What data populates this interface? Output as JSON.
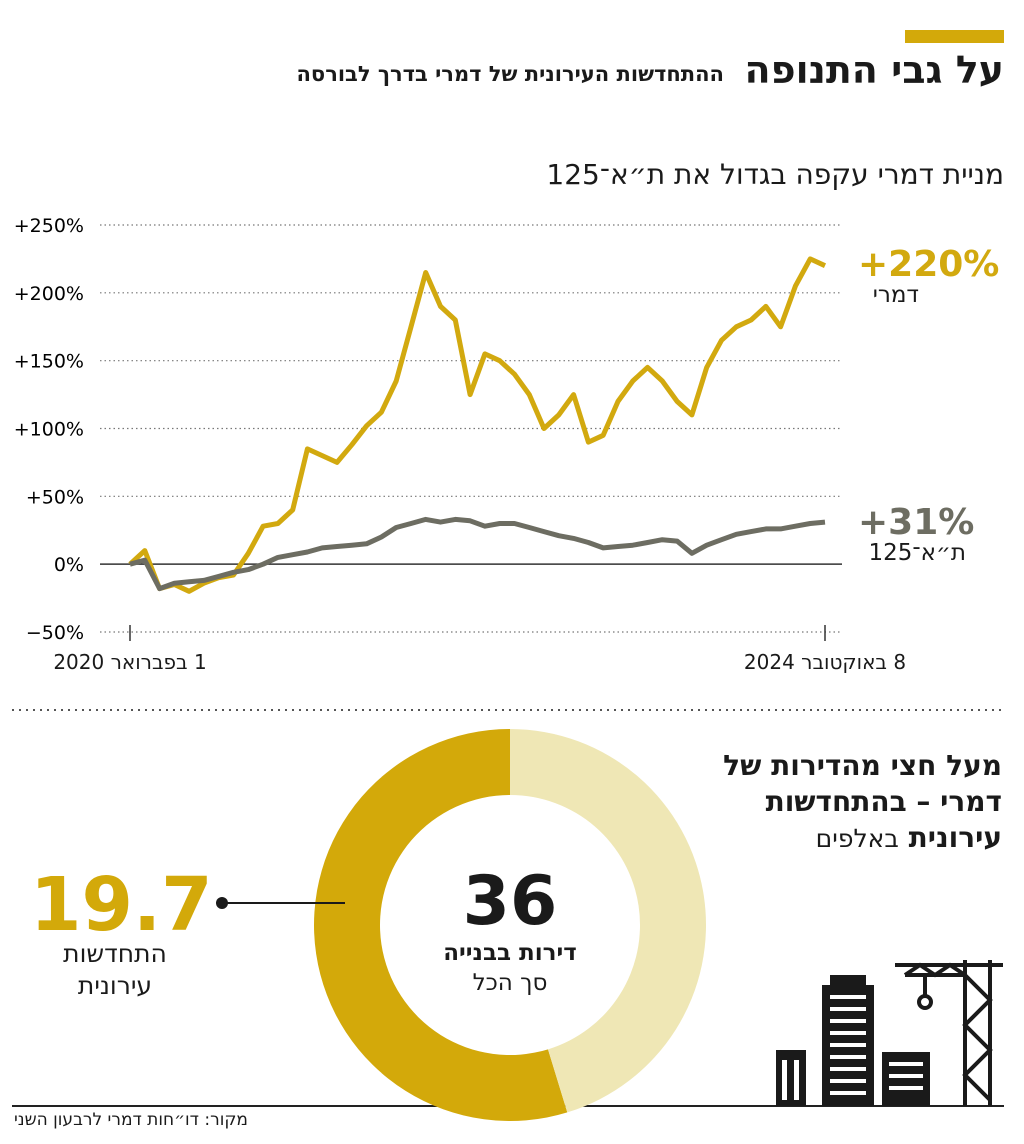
{
  "header": {
    "title": "על גבי התנופה",
    "subtitle": "ההתחדשות העירונית של דמרי בדרך לבורסה"
  },
  "chart_data": [
    {
      "type": "line",
      "title": "מניית דמרי עקפה בגדול את ת״א־125",
      "categories": [
        "1 בפברואר 2020",
        null,
        null,
        null,
        null,
        null,
        null,
        null,
        null,
        null,
        null,
        null,
        null,
        null,
        null,
        null,
        null,
        null,
        null,
        null,
        null,
        null,
        null,
        null,
        null,
        null,
        null,
        null,
        null,
        null,
        null,
        null,
        null,
        null,
        null,
        null,
        null,
        null,
        null,
        null,
        null,
        null,
        null,
        null,
        null,
        null,
        null,
        "8 באוקטובר 2024"
      ],
      "series": [
        {
          "name": "דמרי",
          "color": "#d2a90f",
          "values": [
            0,
            10,
            -18,
            -15,
            -20,
            -14,
            -10,
            -8,
            8,
            28,
            30,
            40,
            85,
            80,
            75,
            88,
            102,
            112,
            135,
            175,
            215,
            190,
            180,
            125,
            155,
            150,
            140,
            125,
            100,
            110,
            125,
            90,
            95,
            120,
            135,
            145,
            135,
            120,
            110,
            145,
            165,
            175,
            180,
            190,
            175,
            205,
            225,
            220
          ],
          "value_labels": [
            null,
            null,
            null,
            null,
            null,
            null,
            null,
            null,
            null,
            null,
            null,
            null,
            null,
            null,
            null,
            null,
            null,
            null,
            null,
            null,
            null,
            null,
            null,
            null,
            null,
            null,
            null,
            null,
            null,
            null,
            null,
            null,
            null,
            null,
            null,
            null,
            null,
            null,
            null,
            null,
            null,
            null,
            null,
            null,
            null,
            null,
            null,
            "+220%"
          ]
        },
        {
          "name": "ת״א־125",
          "color": "#6d6d62",
          "values": [
            0,
            3,
            -18,
            -14,
            -13,
            -12,
            -9,
            -6,
            -4,
            0,
            5,
            7,
            9,
            12,
            13,
            14,
            15,
            20,
            27,
            30,
            33,
            31,
            33,
            32,
            28,
            30,
            30,
            27,
            24,
            21,
            19,
            16,
            12,
            13,
            14,
            16,
            18,
            17,
            8,
            14,
            18,
            22,
            24,
            26,
            26,
            28,
            30,
            31
          ],
          "value_labels": [
            null,
            null,
            null,
            null,
            null,
            null,
            null,
            null,
            null,
            null,
            null,
            null,
            null,
            null,
            null,
            null,
            null,
            null,
            null,
            null,
            null,
            null,
            null,
            null,
            null,
            null,
            null,
            null,
            null,
            null,
            null,
            null,
            null,
            null,
            null,
            null,
            null,
            null,
            null,
            null,
            null,
            null,
            null,
            null,
            null,
            null,
            null,
            "+31%"
          ]
        }
      ],
      "ylim": [
        -50,
        250
      ],
      "yticks": [
        {
          "value": -50,
          "label": "−50%"
        },
        {
          "value": 0,
          "label": "0%"
        },
        {
          "value": 50,
          "label": "+50%"
        },
        {
          "value": 100,
          "label": "+100%"
        },
        {
          "value": 150,
          "label": "+150%"
        },
        {
          "value": 200,
          "label": "+200%"
        },
        {
          "value": 250,
          "label": "+250%"
        }
      ],
      "grid": true
    },
    {
      "type": "pie",
      "title": "מעל חצי מהדירות של דמרי – בהתחדשות עירונית",
      "subtitle": "באלפים",
      "categories": [
        "התחדשות עירונית",
        null
      ],
      "values": [
        19.7,
        16.3
      ],
      "colors": [
        "#d3a90a",
        "#efe7b5"
      ],
      "total": 36,
      "total_label": "דירות בבנייה",
      "total_sublabel": "סך הכל"
    }
  ],
  "source": "מקור: דו״חות דמרי לרבעון השני"
}
